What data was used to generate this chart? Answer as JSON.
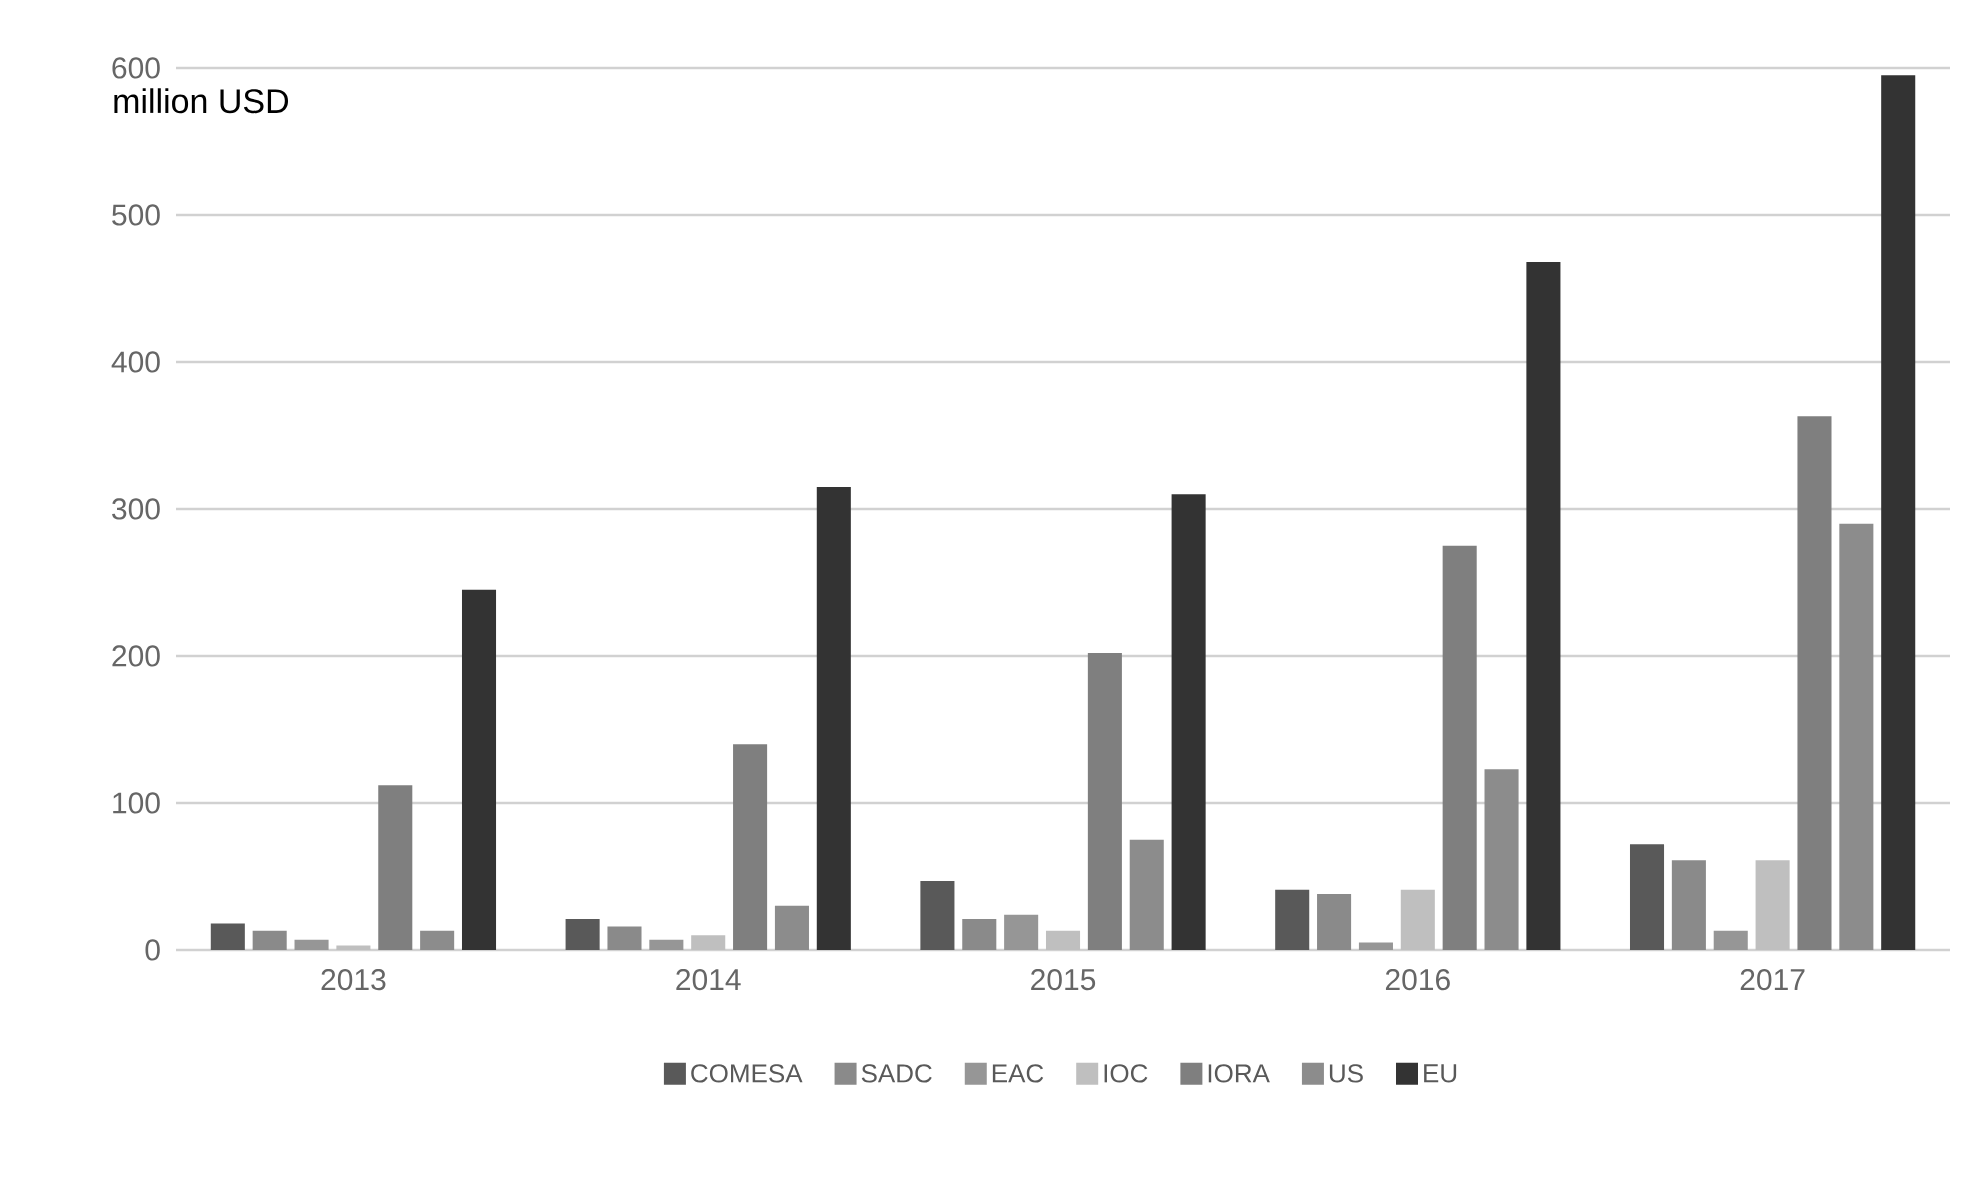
{
  "chart_data": {
    "type": "bar",
    "ylabel": "million USD",
    "categories": [
      "2013",
      "2014",
      "2015",
      "2016",
      "2017"
    ],
    "series": [
      {
        "name": "COMESA",
        "color": "#595959",
        "values": [
          18,
          21,
          47,
          41,
          72
        ]
      },
      {
        "name": "SADC",
        "color": "#8a8a8a",
        "values": [
          13,
          16,
          21,
          38,
          61
        ]
      },
      {
        "name": "EAC",
        "color": "#969696",
        "values": [
          7,
          7,
          24,
          5,
          13
        ]
      },
      {
        "name": "IOC",
        "color": "#bfbfbf",
        "values": [
          3,
          10,
          13,
          41,
          61
        ]
      },
      {
        "name": "IORA",
        "color": "#7f7f7f",
        "values": [
          112,
          140,
          202,
          275,
          363
        ]
      },
      {
        "name": "US",
        "color": "#8c8c8c",
        "values": [
          13,
          30,
          75,
          123,
          290
        ]
      },
      {
        "name": "EU",
        "color": "#333333",
        "values": [
          245,
          315,
          310,
          468,
          595
        ]
      }
    ],
    "ylim": [
      0,
      600
    ],
    "yticks": [
      0,
      100,
      200,
      300,
      400,
      500,
      600
    ],
    "grid": "y",
    "legend": "bottom"
  }
}
